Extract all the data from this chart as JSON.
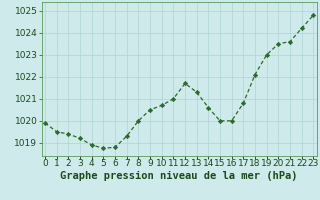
{
  "x": [
    0,
    1,
    2,
    3,
    4,
    5,
    6,
    7,
    8,
    9,
    10,
    11,
    12,
    13,
    14,
    15,
    16,
    17,
    18,
    19,
    20,
    21,
    22,
    23
  ],
  "y": [
    1019.9,
    1019.5,
    1019.4,
    1019.2,
    1018.9,
    1018.75,
    1018.8,
    1019.3,
    1020.0,
    1020.5,
    1020.7,
    1021.0,
    1021.7,
    1021.3,
    1020.6,
    1020.0,
    1020.0,
    1020.8,
    1022.1,
    1023.0,
    1023.5,
    1023.6,
    1024.2,
    1024.8
  ],
  "line_color": "#2d6a2d",
  "marker_color": "#2d6a2d",
  "bg_color": "#ceeaea",
  "grid_color": "#b0d4d4",
  "xlabel": "Graphe pression niveau de la mer (hPa)",
  "ylabel_ticks": [
    1019,
    1020,
    1021,
    1022,
    1023,
    1024,
    1025
  ],
  "xtick_labels": [
    "0",
    "1",
    "2",
    "3",
    "4",
    "5",
    "6",
    "7",
    "8",
    "9",
    "10",
    "11",
    "12",
    "13",
    "14",
    "15",
    "16",
    "17",
    "18",
    "19",
    "20",
    "21",
    "22",
    "23"
  ],
  "ylim": [
    1018.4,
    1025.4
  ],
  "xlim": [
    -0.3,
    23.3
  ],
  "tick_fontsize": 6.5,
  "xlabel_fontsize": 7.5
}
